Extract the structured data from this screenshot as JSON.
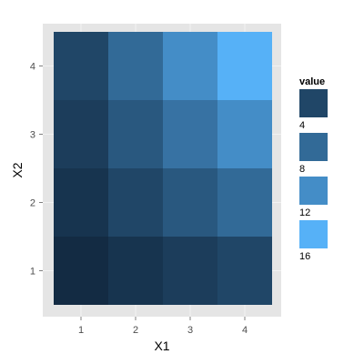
{
  "chart_data": {
    "type": "heatmap",
    "title": "",
    "xlabel": "X1",
    "ylabel": "X2",
    "x_categories": [
      "1",
      "2",
      "3",
      "4"
    ],
    "y_categories": [
      "1",
      "2",
      "3",
      "4"
    ],
    "cells": [
      {
        "x": 1,
        "y": 1,
        "value": 1
      },
      {
        "x": 2,
        "y": 1,
        "value": 2
      },
      {
        "x": 3,
        "y": 1,
        "value": 3
      },
      {
        "x": 4,
        "y": 1,
        "value": 4
      },
      {
        "x": 1,
        "y": 2,
        "value": 2
      },
      {
        "x": 2,
        "y": 2,
        "value": 4
      },
      {
        "x": 3,
        "y": 2,
        "value": 6
      },
      {
        "x": 4,
        "y": 2,
        "value": 8
      },
      {
        "x": 1,
        "y": 3,
        "value": 3
      },
      {
        "x": 2,
        "y": 3,
        "value": 6
      },
      {
        "x": 3,
        "y": 3,
        "value": 9
      },
      {
        "x": 4,
        "y": 3,
        "value": 12
      },
      {
        "x": 1,
        "y": 4,
        "value": 4
      },
      {
        "x": 2,
        "y": 4,
        "value": 8
      },
      {
        "x": 3,
        "y": 4,
        "value": 12
      },
      {
        "x": 4,
        "y": 4,
        "value": 16
      }
    ],
    "value_range": [
      1,
      16
    ],
    "color_low": "#132B43",
    "color_high": "#56B1F7",
    "panel_background": "#E5E5E5",
    "grid_color": "#F2F2F2",
    "grid": true,
    "legend": {
      "title": "value",
      "position": "right",
      "breaks": [
        "4",
        "8",
        "12",
        "16"
      ],
      "break_values": [
        4,
        8,
        12,
        16
      ]
    }
  }
}
